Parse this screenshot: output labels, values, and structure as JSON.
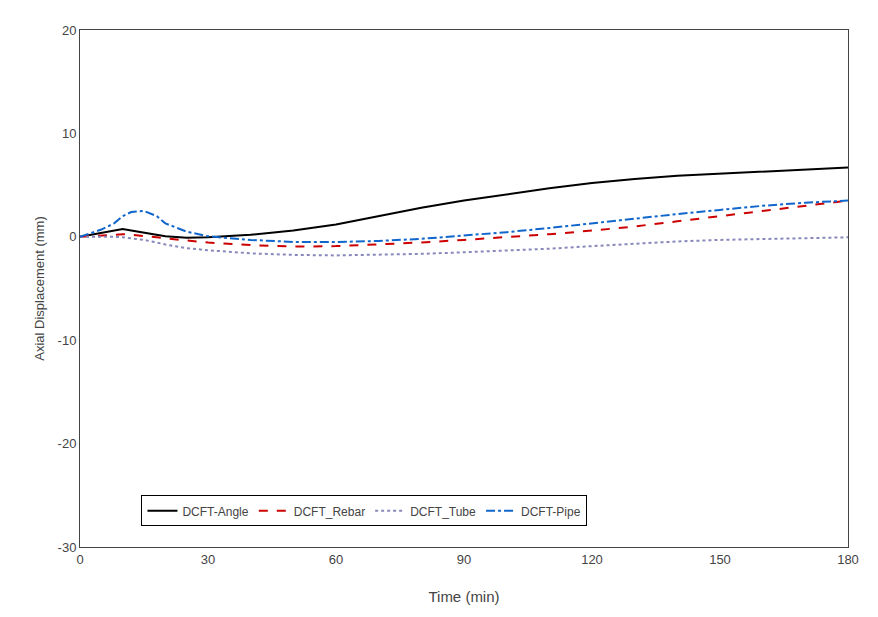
{
  "chart_data": {
    "type": "line",
    "xlabel": "Time (min)",
    "ylabel": "Axial Displacement (mm)",
    "xlim": [
      0,
      180
    ],
    "ylim": [
      -30,
      20
    ],
    "xticks": [
      0,
      30,
      60,
      90,
      120,
      150,
      180
    ],
    "yticks": [
      -30,
      -20,
      -10,
      0,
      10,
      20
    ],
    "grid": false,
    "legend": "lower left",
    "x": [
      0,
      2,
      5,
      8,
      10,
      12,
      15,
      18,
      20,
      25,
      30,
      40,
      50,
      60,
      70,
      80,
      90,
      100,
      110,
      120,
      130,
      140,
      150,
      160,
      170,
      180
    ],
    "series": [
      {
        "name": "DCFT-Angle",
        "color": "#000000",
        "line_style": "solid",
        "values": [
          0,
          0.15,
          0.4,
          0.6,
          0.75,
          0.6,
          0.4,
          0.15,
          0.05,
          -0.1,
          -0.05,
          0.2,
          0.6,
          1.2,
          2.0,
          2.8,
          3.5,
          4.1,
          4.7,
          5.2,
          5.6,
          5.9,
          6.1,
          6.3,
          6.5,
          6.7
        ]
      },
      {
        "name": "DCFT_Rebar",
        "color": "#cc0000",
        "line_style": "dashed",
        "values": [
          0,
          0.05,
          0.15,
          0.2,
          0.25,
          0.2,
          0.1,
          -0.05,
          -0.15,
          -0.35,
          -0.55,
          -0.8,
          -0.95,
          -0.9,
          -0.75,
          -0.55,
          -0.3,
          -0.05,
          0.25,
          0.6,
          1.0,
          1.5,
          2.0,
          2.5,
          3.0,
          3.5
        ]
      },
      {
        "name": "DCFT_Tube",
        "color": "#8888bb",
        "line_style": "dotted",
        "values": [
          0,
          0.0,
          0.05,
          0.0,
          -0.05,
          -0.15,
          -0.3,
          -0.55,
          -0.75,
          -1.1,
          -1.3,
          -1.6,
          -1.75,
          -1.8,
          -1.75,
          -1.65,
          -1.5,
          -1.35,
          -1.15,
          -0.9,
          -0.65,
          -0.45,
          -0.3,
          -0.2,
          -0.1,
          -0.05
        ]
      },
      {
        "name": "DCFT-Pipe",
        "color": "#1166cc",
        "line_style": "dashdot",
        "values": [
          0,
          0.3,
          0.7,
          1.3,
          2.0,
          2.4,
          2.5,
          2.0,
          1.3,
          0.5,
          0.05,
          -0.3,
          -0.5,
          -0.5,
          -0.4,
          -0.2,
          0.1,
          0.45,
          0.85,
          1.3,
          1.8,
          2.2,
          2.6,
          3.0,
          3.3,
          3.5
        ]
      }
    ]
  }
}
